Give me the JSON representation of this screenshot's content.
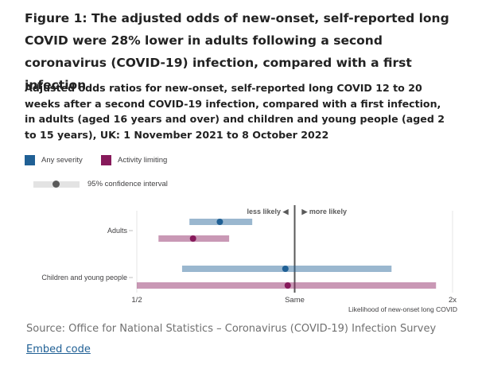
{
  "title": "Figure 1: The adjusted odds of new-onset, self-reported long COVID were 28% lower in adults following a second coronavirus (COVID-19) infection, compared with a first infection",
  "subtitle": "Adjusted odds ratios for new-onset, self-reported long COVID 12 to 20 weeks after a second COVID-19 infection, compared with a first infection, in adults (aged 16 years and over) and children and young people (aged 2 to 15 years), UK: 1 November 2021 to 8 October 2022",
  "legend": {
    "any_severity": "Any severity",
    "activity_limiting": "Activity limiting",
    "ci": "95% confidence interval"
  },
  "colors": {
    "any_severity": "#206095",
    "activity_limiting": "#871a5b"
  },
  "chart_data": {
    "type": "dot-plot with confidence intervals",
    "scale": "log",
    "xlim": [
      0.5,
      2
    ],
    "x_ticks": [
      {
        "value": 0.5,
        "label": "1/2"
      },
      {
        "value": 1,
        "label": "Same"
      },
      {
        "value": 2,
        "label": "2x"
      }
    ],
    "xlabel": "Likelihood of new-onset long COVID",
    "annotations": {
      "left": "less likely",
      "right": "more likely"
    },
    "categories": [
      "Adults",
      "Children and young people"
    ],
    "series": [
      {
        "name": "Any severity",
        "color": "#206095",
        "values": [
          {
            "category": "Adults",
            "estimate": 0.72,
            "lower": 0.63,
            "upper": 0.83
          },
          {
            "category": "Children and young people",
            "estimate": 0.96,
            "lower": 0.61,
            "upper": 1.53
          }
        ]
      },
      {
        "name": "Activity limiting",
        "color": "#871a5b",
        "values": [
          {
            "category": "Adults",
            "estimate": 0.64,
            "lower": 0.55,
            "upper": 0.75
          },
          {
            "category": "Children and young people",
            "estimate": 0.97,
            "lower": 0.5,
            "upper": 1.86
          }
        ]
      }
    ]
  },
  "source": "Source: Office for National Statistics – Coronavirus (COVID-19) Infection Survey",
  "embed": "Embed code"
}
